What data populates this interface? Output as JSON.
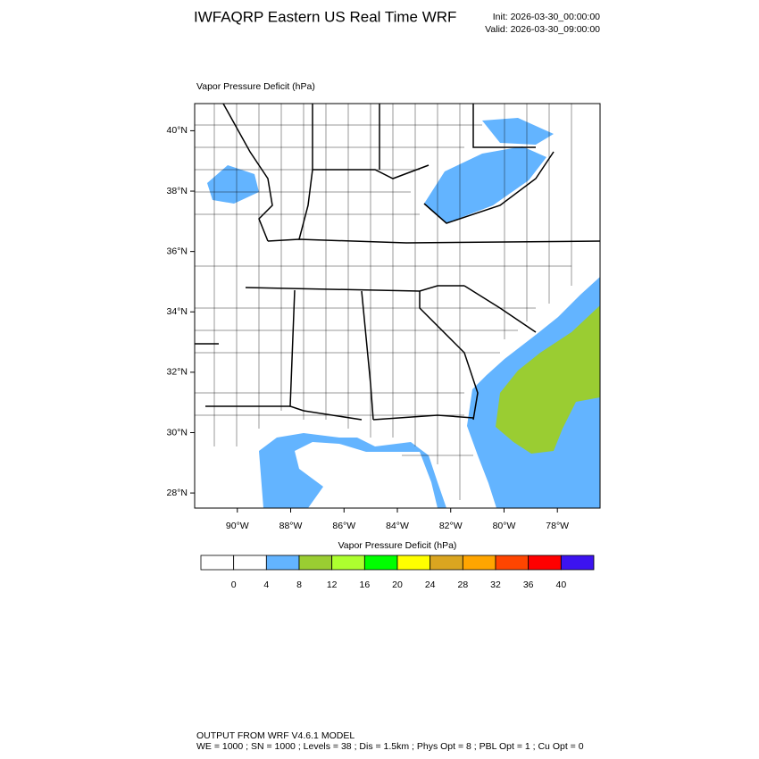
{
  "header": {
    "title": "IWFAQRP Eastern US Real Time WRF",
    "init": "Init: 2026-03-30_00:00:00",
    "valid": "Valid: 2026-03-30_09:00:00"
  },
  "map": {
    "label": "Vapor Pressure Deficit   (hPa)",
    "lon_lim": [
      -91.6,
      -76.4
    ],
    "lat_lim": [
      27.5,
      40.9
    ],
    "lat_ticks": [
      {
        "value": 40,
        "label": "40°N"
      },
      {
        "value": 38,
        "label": "38°N"
      },
      {
        "value": 36,
        "label": "36°N"
      },
      {
        "value": 34,
        "label": "34°N"
      },
      {
        "value": 32,
        "label": "32°N"
      },
      {
        "value": 30,
        "label": "30°N"
      },
      {
        "value": 28,
        "label": "28°N"
      }
    ],
    "lon_ticks": [
      {
        "value": -90,
        "label": "90°W"
      },
      {
        "value": -88,
        "label": "88°W"
      },
      {
        "value": -86,
        "label": "86°W"
      },
      {
        "value": -84,
        "label": "84°W"
      },
      {
        "value": -82,
        "label": "82°W"
      },
      {
        "value": -80,
        "label": "80°W"
      },
      {
        "value": -78,
        "label": "78°W"
      }
    ]
  },
  "colorbar": {
    "title": "Vapor Pressure Deficit  (hPa)",
    "colors": [
      "#ffffff",
      "#ffffff",
      "#63b4ff",
      "#9acd32",
      "#adff2f",
      "#00ff00",
      "#ffff00",
      "#daa520",
      "#ffa500",
      "#ff4500",
      "#ff0000",
      "#3c13f0"
    ],
    "labels": [
      0,
      4,
      8,
      12,
      16,
      20,
      24,
      28,
      32,
      36,
      40
    ]
  },
  "footer": {
    "line1": "OUTPUT FROM WRF V4.6.1 MODEL",
    "line2": "WE = 1000 ; SN = 1000 ; Levels = 38 ; Dis = 1.5km ; Phys Opt = 8 ; PBL Opt = 1 ; Cu Opt = 0"
  }
}
